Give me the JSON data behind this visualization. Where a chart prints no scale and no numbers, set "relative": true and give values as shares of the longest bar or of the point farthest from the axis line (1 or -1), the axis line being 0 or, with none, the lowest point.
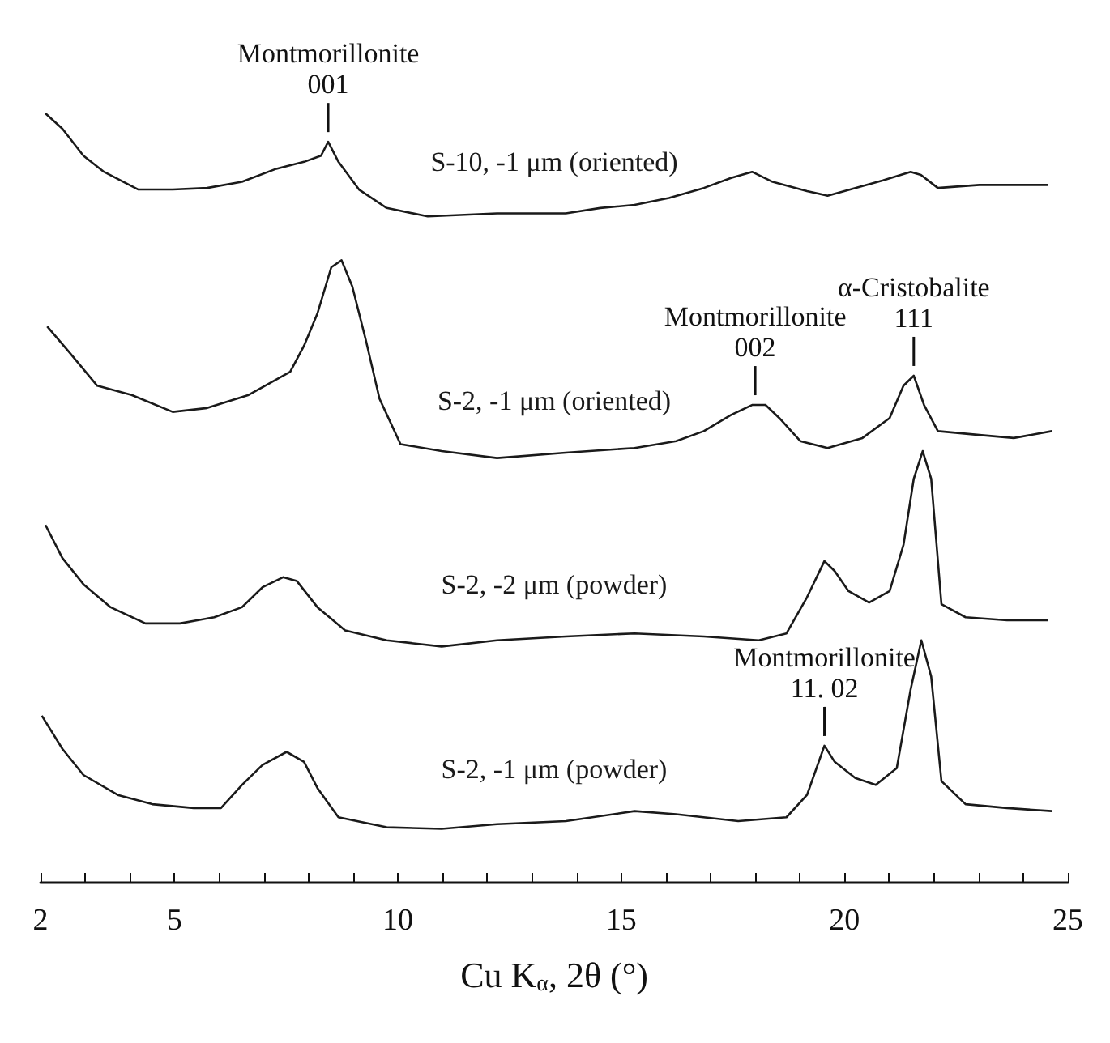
{
  "chart_data": {
    "type": "line",
    "relative": true,
    "xlabel": "Cu K$_{α}$, 2θ (°)",
    "xlim": [
      2,
      25
    ],
    "xticks": [
      2,
      {
        "value": 3,
        "label": null
      },
      {
        "value": 4,
        "label": null
      },
      5,
      {
        "value": 6,
        "label": null
      },
      {
        "value": 7,
        "label": null
      },
      {
        "value": 8,
        "label": null
      },
      {
        "value": 9,
        "label": null
      },
      10,
      {
        "value": 11,
        "label": null
      },
      {
        "value": 12,
        "label": null
      },
      {
        "value": 13,
        "label": null
      },
      {
        "value": 14,
        "label": null
      },
      15,
      {
        "value": 16,
        "label": null
      },
      {
        "value": 17,
        "label": null
      },
      {
        "value": 18,
        "label": null
      },
      {
        "value": 19,
        "label": null
      },
      20,
      {
        "value": 21,
        "label": null
      },
      {
        "value": 22,
        "label": null
      },
      {
        "value": 23,
        "label": null
      },
      {
        "value": 24,
        "label": null
      },
      25
    ],
    "grid": false,
    "legend": false,
    "series": [
      {
        "name": "S-10, -1 μm (oriented)",
        "color": "#1a1a1a",
        "x": [
          2.11,
          2.49,
          2.96,
          3.42,
          4.19,
          4.96,
          5.73,
          6.51,
          7.28,
          7.9,
          8.28,
          8.44,
          8.67,
          9.13,
          9.75,
          10.67,
          12.22,
          13.76,
          14.53,
          15.3,
          16.07,
          16.85,
          17.46,
          17.93,
          18.39,
          19.16,
          19.62,
          20.24,
          20.86,
          21.48,
          21.71,
          22.09,
          23.02,
          23.79,
          24.56
        ],
        "values": [
          1.0,
          0.98,
          0.945,
          0.924,
          0.901,
          0.901,
          0.903,
          0.911,
          0.928,
          0.937,
          0.945,
          0.963,
          0.937,
          0.901,
          0.877,
          0.866,
          0.87,
          0.87,
          0.877,
          0.881,
          0.89,
          0.903,
          0.916,
          0.924,
          0.911,
          0.899,
          0.893,
          0.903,
          0.913,
          0.924,
          0.92,
          0.903,
          0.907,
          0.907,
          0.907
        ]
      },
      {
        "name": "S-2, -1 μm (oriented)",
        "color": "#1a1a1a",
        "x": [
          2.15,
          2.65,
          3.27,
          4.04,
          4.96,
          5.73,
          6.66,
          7.59,
          7.9,
          8.2,
          8.51,
          8.74,
          8.98,
          9.28,
          9.59,
          10.06,
          10.98,
          12.22,
          13.76,
          15.3,
          16.23,
          16.85,
          17.46,
          17.93,
          18.23,
          18.54,
          19.01,
          19.62,
          20.4,
          21.01,
          21.32,
          21.55,
          21.78,
          22.09,
          23.02,
          23.79,
          24.64
        ],
        "values": [
          0.723,
          0.689,
          0.646,
          0.634,
          0.612,
          0.617,
          0.634,
          0.664,
          0.698,
          0.74,
          0.8,
          0.809,
          0.775,
          0.706,
          0.629,
          0.57,
          0.561,
          0.552,
          0.559,
          0.565,
          0.574,
          0.587,
          0.608,
          0.621,
          0.621,
          0.604,
          0.574,
          0.565,
          0.578,
          0.604,
          0.646,
          0.659,
          0.621,
          0.587,
          0.582,
          0.578,
          0.587
        ]
      },
      {
        "name": "S-2, -2 μm (powder)",
        "color": "#1a1a1a",
        "x": [
          2.11,
          2.49,
          2.96,
          3.57,
          4.35,
          5.12,
          5.89,
          6.51,
          6.97,
          7.43,
          7.74,
          8.2,
          8.82,
          9.75,
          10.98,
          12.22,
          13.76,
          15.3,
          16.85,
          18.08,
          18.7,
          19.16,
          19.55,
          19.78,
          20.09,
          20.55,
          21.01,
          21.32,
          21.55,
          21.75,
          21.94,
          22.17,
          22.71,
          23.64,
          24.56
        ],
        "values": [
          0.465,
          0.422,
          0.388,
          0.358,
          0.337,
          0.337,
          0.345,
          0.358,
          0.384,
          0.397,
          0.392,
          0.358,
          0.328,
          0.315,
          0.307,
          0.315,
          0.32,
          0.324,
          0.32,
          0.315,
          0.324,
          0.371,
          0.418,
          0.405,
          0.379,
          0.364,
          0.379,
          0.439,
          0.525,
          0.561,
          0.525,
          0.362,
          0.345,
          0.341,
          0.341
        ]
      },
      {
        "name": "S-2, -1 μm (powder)",
        "color": "#1a1a1a",
        "x": [
          2.03,
          2.49,
          2.96,
          3.73,
          4.5,
          5.43,
          6.04,
          6.51,
          6.97,
          7.51,
          7.9,
          8.2,
          8.67,
          9.75,
          10.98,
          12.22,
          13.76,
          15.3,
          16.23,
          17.62,
          18.7,
          19.16,
          19.55,
          19.78,
          20.24,
          20.7,
          21.17,
          21.48,
          21.72,
          21.94,
          22.17,
          22.71,
          23.64,
          24.64
        ],
        "values": [
          0.217,
          0.174,
          0.14,
          0.114,
          0.102,
          0.097,
          0.097,
          0.127,
          0.153,
          0.17,
          0.157,
          0.123,
          0.085,
          0.072,
          0.07,
          0.076,
          0.08,
          0.093,
          0.089,
          0.08,
          0.085,
          0.114,
          0.178,
          0.157,
          0.136,
          0.127,
          0.149,
          0.251,
          0.315,
          0.268,
          0.132,
          0.102,
          0.097,
          0.093
        ]
      }
    ],
    "annotations": [
      {
        "text": "Montmorillonite\n001",
        "x": 8.44,
        "y": 0.963
      },
      {
        "text": "Montmorillonite\n002",
        "x": 18.0,
        "y": 0.621
      },
      {
        "text": "α-Cristobalite\n111",
        "x": 21.55,
        "y": 0.659
      },
      {
        "text": "Montmorillonite\n11. 02",
        "x": 19.55,
        "y": 0.178
      }
    ]
  }
}
